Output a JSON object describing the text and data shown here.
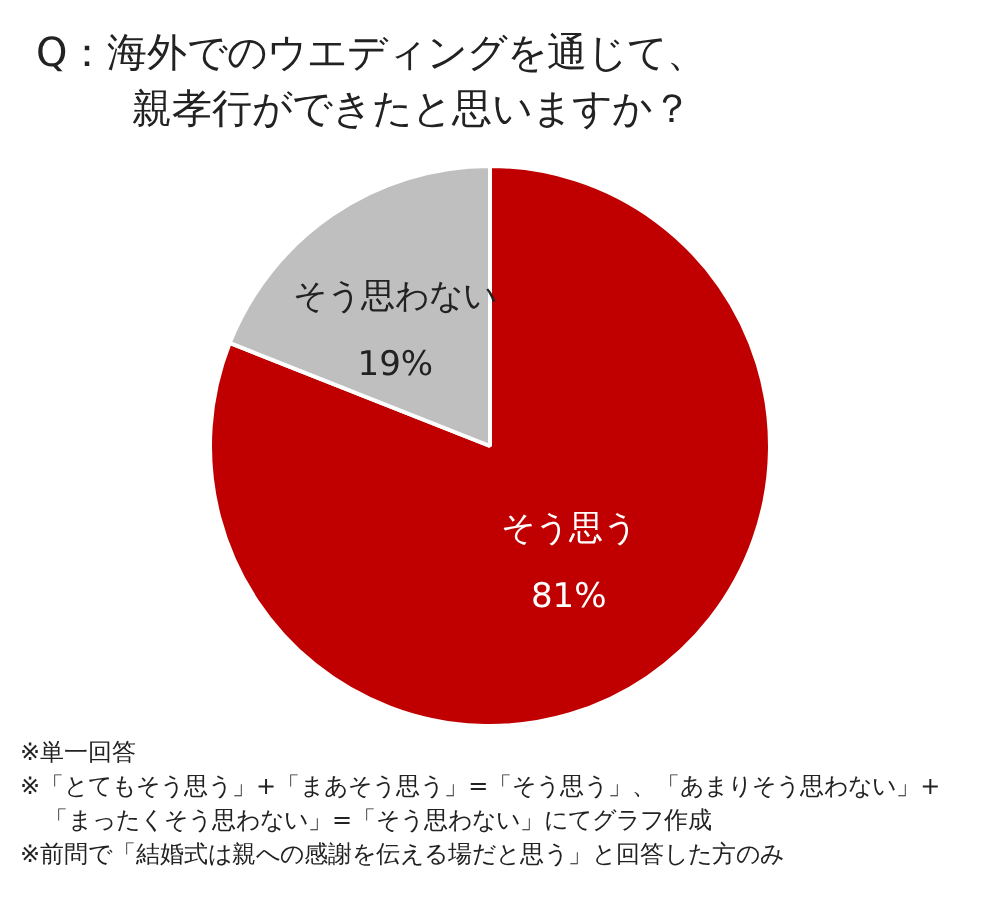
{
  "chart_data": {
    "type": "pie",
    "title": "Q：海外でのウエディングを通じて、親孝行ができたと思いますか？",
    "categories": [
      "そう思う",
      "そう思わない"
    ],
    "values": [
      81,
      19
    ],
    "value_labels": [
      "81%",
      "19%"
    ],
    "colors": [
      "#c00000",
      "#bfbfbf"
    ],
    "legend": false,
    "annotations": [
      "※単一回答",
      "※「とてもそう思う」+「まあそう思う」=「そう思う」、「あまりそう思わない」+「まったくそう思わない」=「そう思わない」にてグラフ作成",
      "※前問で「結婚式は親への感謝を伝える場だと思う」と回答した方のみ"
    ]
  }
}
